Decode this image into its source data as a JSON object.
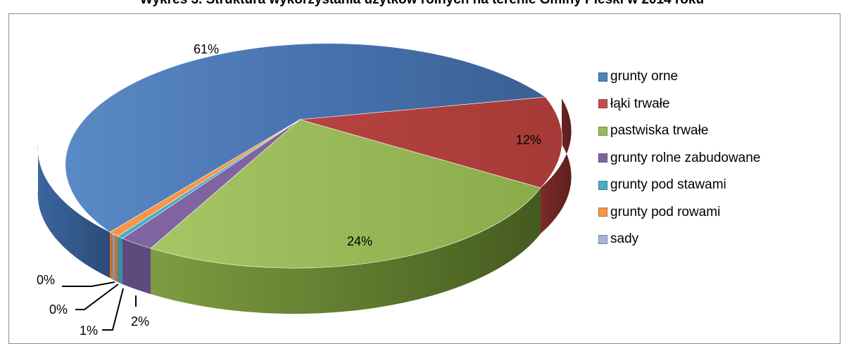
{
  "chart_data": {
    "type": "pie",
    "title": "Wykres 3. Struktura wykorzystania użytków rolnych na terenie Gminy Pieski w 2014 roku",
    "categories": [
      "grunty orne",
      "łąki trwałe",
      "pastwiska trwałe",
      "grunty rolne zabudowane",
      "grunty pod stawami",
      "grunty pod rowami",
      "sady"
    ],
    "values": [
      61,
      12,
      24,
      2,
      0,
      1,
      0
    ],
    "labels": [
      "61%",
      "12%",
      "24%",
      "2%",
      "0%",
      "1%",
      "0%"
    ],
    "colors": [
      "#4f81bd",
      "#c0504d",
      "#9bbb59",
      "#8064a2",
      "#4bacc6",
      "#f79646",
      "#a5b6d9"
    ],
    "legend_position": "right",
    "three_d": true
  }
}
